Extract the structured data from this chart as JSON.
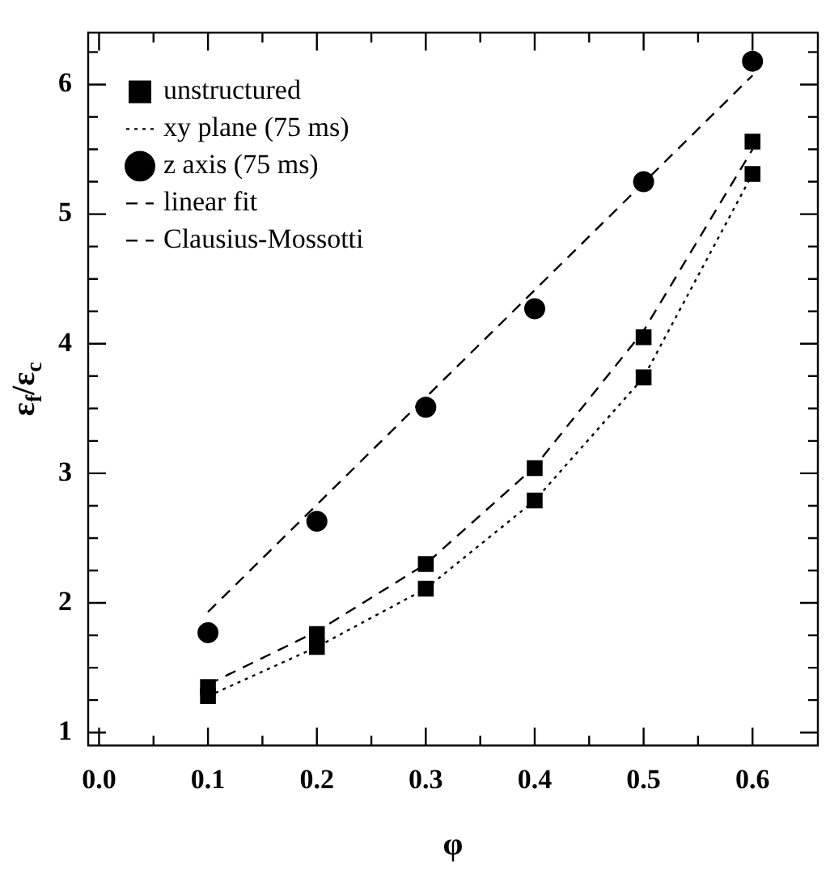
{
  "chart_data": {
    "type": "scatter",
    "xlabel": "φ",
    "ylabel": "ε$_{f}$/ε$_{c}$",
    "xlim": [
      -0.01,
      0.66
    ],
    "ylim": [
      0.9,
      6.4
    ],
    "xticks": [
      {
        "value": 0,
        "label": "0.0"
      },
      {
        "value": 0.05,
        "label": null
      },
      0.1,
      {
        "value": 0.15,
        "label": null
      },
      0.2,
      {
        "value": 0.25,
        "label": null
      },
      0.3,
      {
        "value": 0.35,
        "label": null
      },
      0.4,
      {
        "value": 0.45,
        "label": null
      },
      0.5,
      {
        "value": 0.55,
        "label": null
      },
      0.6
    ],
    "yticks": [
      1,
      {
        "value": 1.25,
        "label": null
      },
      {
        "value": 1.5,
        "label": null
      },
      {
        "value": 1.75,
        "label": null
      },
      2,
      {
        "value": 2.25,
        "label": null
      },
      {
        "value": 2.5,
        "label": null
      },
      {
        "value": 2.75,
        "label": null
      },
      3,
      {
        "value": 3.25,
        "label": null
      },
      {
        "value": 3.5,
        "label": null
      },
      {
        "value": 3.75,
        "label": null
      },
      4,
      {
        "value": 4.25,
        "label": null
      },
      {
        "value": 4.5,
        "label": null
      },
      {
        "value": 4.75,
        "label": null
      },
      5,
      {
        "value": 5.25,
        "label": null
      },
      {
        "value": 5.5,
        "label": null
      },
      {
        "value": 5.75,
        "label": null
      },
      6,
      {
        "value": 6.25,
        "label": null
      }
    ],
    "grid": false,
    "legend": "top left",
    "series": [
      {
        "name": "unstructured",
        "type": "scatter",
        "marker": "square",
        "color": "#000000",
        "x": [
          0.1,
          0.2,
          0.3,
          0.4,
          0.5,
          0.6
        ],
        "values": [
          1.35,
          1.76,
          2.3,
          3.04,
          4.05,
          5.56
        ]
      },
      {
        "name": "xy plane (75 ms)",
        "type": "line",
        "marker": "square",
        "line_style": "dotted",
        "color": "#000000",
        "x": [
          0.1,
          0.2,
          0.3,
          0.4,
          0.5,
          0.6
        ],
        "values": [
          1.28,
          1.66,
          2.11,
          2.79,
          3.74,
          5.31
        ]
      },
      {
        "name": "z axis (75 ms)",
        "type": "scatter",
        "marker": "circle",
        "color": "#000000",
        "x": [
          0.1,
          0.2,
          0.3,
          0.4,
          0.5,
          0.6
        ],
        "values": [
          1.77,
          2.63,
          3.51,
          4.27,
          5.25,
          6.18
        ]
      },
      {
        "name": "linear fit",
        "type": "line",
        "marker": "none",
        "line_style": "dashed",
        "color": "#000000",
        "x": [
          0.1,
          0.6
        ],
        "values": [
          1.93,
          6.07
        ]
      },
      {
        "name": "Clausius-Mossotti",
        "type": "line",
        "marker": "none",
        "line_style": "dashed",
        "color": "#000000",
        "x": [
          0.1,
          0.2,
          0.3,
          0.4,
          0.5,
          0.6
        ],
        "values": [
          1.37,
          1.78,
          2.3,
          3.05,
          4.1,
          5.5
        ]
      }
    ]
  }
}
